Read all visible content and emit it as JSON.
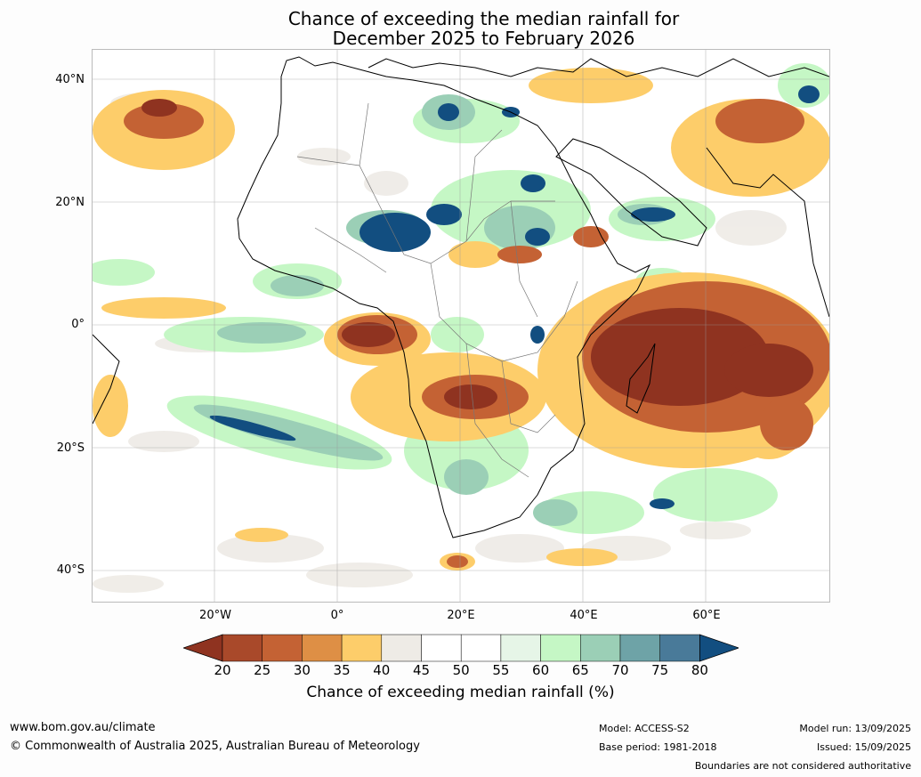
{
  "title": {
    "line1": "Chance of exceeding the median rainfall for",
    "line2": "December 2025 to February 2026"
  },
  "map": {
    "lat_labels": [
      "40°N",
      "20°N",
      "0°",
      "20°S",
      "40°S"
    ],
    "lon_labels": [
      "20°W",
      "0°",
      "20°E",
      "40°E",
      "60°E"
    ]
  },
  "colorbar": {
    "ticks": [
      "20",
      "25",
      "30",
      "35",
      "40",
      "45",
      "50",
      "55",
      "60",
      "65",
      "70",
      "75",
      "80"
    ],
    "colors": [
      "#8f3320",
      "#a9492a",
      "#c46234",
      "#de8f45",
      "#fdcd6a",
      "#eeebe6",
      "#ffffff",
      "#ffffff",
      "#e6f5e7",
      "#c5f7c5",
      "#9bcfb6",
      "#6ea3a7",
      "#497a99",
      "#124e80"
    ],
    "label": "Chance of exceeding median rainfall (%)"
  },
  "footer": {
    "website": "www.bom.gov.au/climate",
    "copyright": "© Commonwealth of Australia 2025, Australian Bureau of Meteorology",
    "model": "Model: ACCESS-S2",
    "base_period": "Base period: 1981-2018",
    "model_run": "Model run: 13/09/2025",
    "issued": "Issued: 15/09/2025",
    "disclaimer": "Boundaries are not considered authoritative"
  }
}
